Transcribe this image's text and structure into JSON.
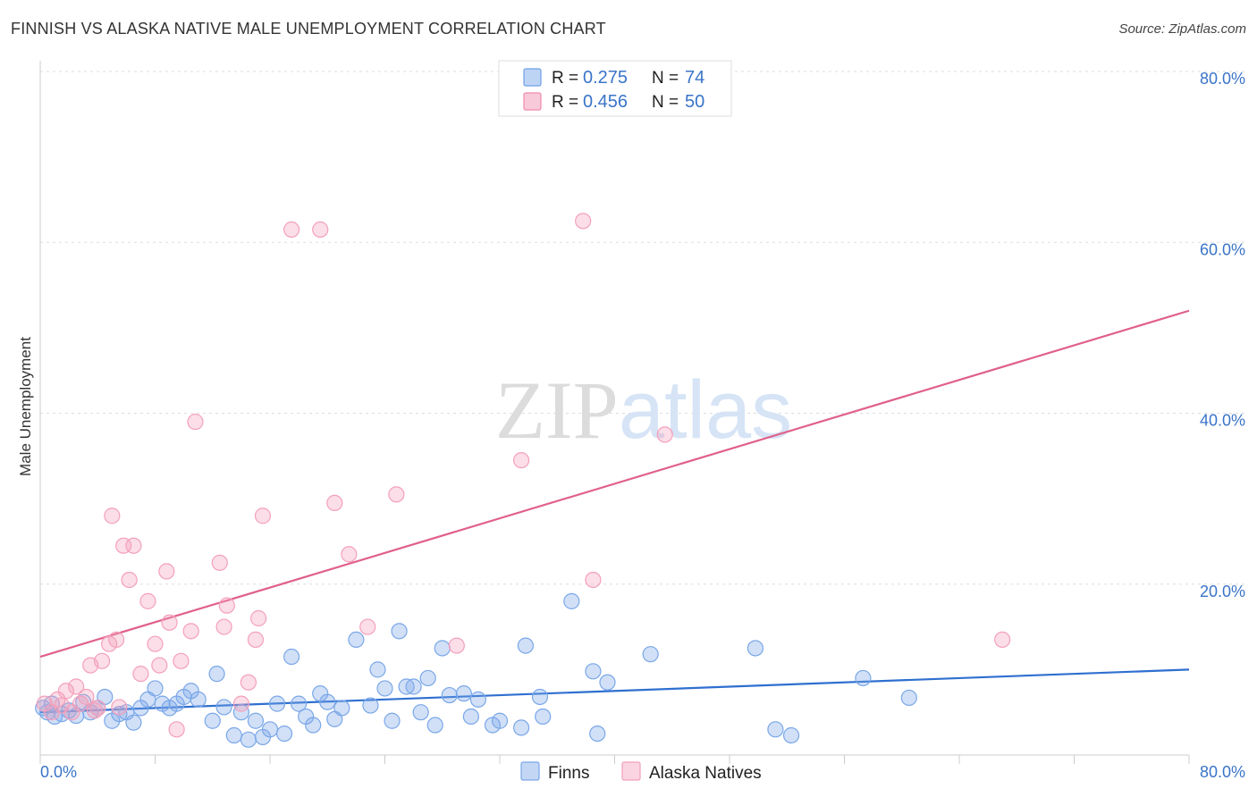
{
  "chart_data": {
    "type": "scatter",
    "title": "FINNISH VS ALASKA NATIVE MALE UNEMPLOYMENT CORRELATION CHART",
    "source": "Source: ZipAtlas.com",
    "ylabel": "Male Unemployment",
    "xlabel": "",
    "xlim": [
      0,
      80
    ],
    "ylim": [
      0,
      80
    ],
    "x_tick_labels": [
      "0.0%",
      "80.0%"
    ],
    "y_ticks": [
      {
        "value": 20,
        "label": "20.0%"
      },
      {
        "value": 40,
        "label": "40.0%"
      },
      {
        "value": 60,
        "label": "60.0%"
      },
      {
        "value": 80,
        "label": "80.0%"
      }
    ],
    "grid": true,
    "watermark": "ZIPatlas",
    "legend_position": "bottom",
    "stats_box": [
      {
        "r_label": "R =",
        "r_value": "0.275",
        "n_label": "N =",
        "n_value": "74",
        "color": "#6fa0e6"
      },
      {
        "r_label": "R =",
        "r_value": "0.456",
        "n_label": "N =",
        "n_value": "50",
        "color": "#f08aaa"
      }
    ],
    "series": [
      {
        "name": "Finns",
        "color": "#7aa7e8",
        "line_color": "#2f6fd0",
        "trend": {
          "x0": 0,
          "y0": 5.0,
          "x1": 80,
          "y1": 10.0
        },
        "points": [
          [
            0.2,
            5.5
          ],
          [
            0.5,
            5.0
          ],
          [
            0.8,
            6.0
          ],
          [
            1.0,
            4.5
          ],
          [
            1.5,
            4.8
          ],
          [
            2.0,
            5.2
          ],
          [
            2.5,
            4.6
          ],
          [
            3.0,
            6.2
          ],
          [
            3.5,
            5.0
          ],
          [
            4.0,
            5.5
          ],
          [
            4.5,
            6.8
          ],
          [
            5.0,
            4.0
          ],
          [
            5.5,
            4.8
          ],
          [
            6.0,
            5.0
          ],
          [
            6.5,
            3.8
          ],
          [
            7.0,
            5.5
          ],
          [
            7.5,
            6.5
          ],
          [
            8.0,
            7.8
          ],
          [
            8.5,
            6.0
          ],
          [
            9.0,
            5.5
          ],
          [
            9.5,
            6.0
          ],
          [
            10.0,
            6.8
          ],
          [
            10.5,
            7.5
          ],
          [
            11.0,
            6.5
          ],
          [
            12.0,
            4.0
          ],
          [
            12.3,
            9.5
          ],
          [
            12.8,
            5.6
          ],
          [
            13.5,
            2.3
          ],
          [
            14.0,
            5.0
          ],
          [
            14.5,
            1.8
          ],
          [
            15.0,
            4.0
          ],
          [
            15.5,
            2.1
          ],
          [
            16.0,
            3.0
          ],
          [
            16.5,
            6.0
          ],
          [
            17.0,
            2.5
          ],
          [
            17.5,
            11.5
          ],
          [
            18.0,
            6.0
          ],
          [
            18.5,
            4.5
          ],
          [
            19.0,
            3.5
          ],
          [
            19.5,
            7.2
          ],
          [
            20.0,
            6.2
          ],
          [
            20.5,
            4.2
          ],
          [
            21.0,
            5.5
          ],
          [
            22.0,
            13.5
          ],
          [
            23.0,
            5.8
          ],
          [
            23.5,
            10.0
          ],
          [
            24.0,
            7.8
          ],
          [
            24.5,
            4.0
          ],
          [
            25.0,
            14.5
          ],
          [
            25.5,
            8.0
          ],
          [
            26.0,
            8.0
          ],
          [
            26.5,
            5.0
          ],
          [
            27.0,
            9.0
          ],
          [
            27.5,
            3.5
          ],
          [
            28.0,
            12.5
          ],
          [
            28.5,
            7.0
          ],
          [
            29.5,
            7.2
          ],
          [
            30.0,
            4.5
          ],
          [
            30.5,
            6.5
          ],
          [
            31.5,
            3.5
          ],
          [
            32.0,
            4.0
          ],
          [
            33.5,
            3.2
          ],
          [
            33.8,
            12.8
          ],
          [
            34.8,
            6.8
          ],
          [
            35.0,
            4.5
          ],
          [
            37.0,
            18.0
          ],
          [
            38.5,
            9.8
          ],
          [
            38.8,
            2.5
          ],
          [
            39.5,
            8.5
          ],
          [
            42.5,
            11.8
          ],
          [
            49.8,
            12.5
          ],
          [
            51.2,
            3.0
          ],
          [
            52.3,
            2.3
          ],
          [
            57.3,
            9.0
          ],
          [
            60.5,
            6.7
          ]
        ]
      },
      {
        "name": "Alaska Natives",
        "color": "#f4a0bb",
        "line_color": "#e0608a",
        "trend": {
          "x0": 0,
          "y0": 11.5,
          "x1": 80,
          "y1": 52.0
        },
        "points": [
          [
            0.3,
            6.0
          ],
          [
            0.8,
            5.0
          ],
          [
            1.2,
            6.5
          ],
          [
            1.8,
            7.5
          ],
          [
            2.2,
            5.0
          ],
          [
            2.5,
            8.0
          ],
          [
            2.8,
            6.0
          ],
          [
            3.2,
            6.8
          ],
          [
            3.5,
            10.5
          ],
          [
            4.0,
            5.5
          ],
          [
            4.3,
            11.0
          ],
          [
            4.8,
            13.0
          ],
          [
            5.0,
            28.0
          ],
          [
            5.3,
            13.5
          ],
          [
            5.8,
            24.5
          ],
          [
            6.2,
            20.5
          ],
          [
            6.5,
            24.5
          ],
          [
            7.0,
            9.5
          ],
          [
            7.5,
            18.0
          ],
          [
            8.0,
            13.0
          ],
          [
            8.3,
            10.5
          ],
          [
            8.8,
            21.5
          ],
          [
            9.0,
            15.5
          ],
          [
            9.5,
            3.0
          ],
          [
            9.8,
            11.0
          ],
          [
            10.5,
            14.5
          ],
          [
            10.8,
            39.0
          ],
          [
            12.5,
            22.5
          ],
          [
            12.8,
            15.0
          ],
          [
            13.0,
            17.5
          ],
          [
            14.0,
            6.0
          ],
          [
            14.5,
            8.5
          ],
          [
            15.0,
            13.5
          ],
          [
            15.2,
            16.0
          ],
          [
            15.5,
            28.0
          ],
          [
            17.5,
            61.5
          ],
          [
            19.5,
            61.5
          ],
          [
            20.5,
            29.5
          ],
          [
            21.5,
            23.5
          ],
          [
            22.8,
            15.0
          ],
          [
            24.8,
            30.5
          ],
          [
            29.0,
            12.8
          ],
          [
            33.5,
            34.5
          ],
          [
            37.8,
            62.5
          ],
          [
            38.5,
            20.5
          ],
          [
            43.5,
            37.5
          ],
          [
            67.0,
            13.5
          ],
          [
            1.5,
            5.8
          ],
          [
            3.8,
            5.2
          ],
          [
            5.5,
            5.6
          ]
        ]
      }
    ]
  }
}
